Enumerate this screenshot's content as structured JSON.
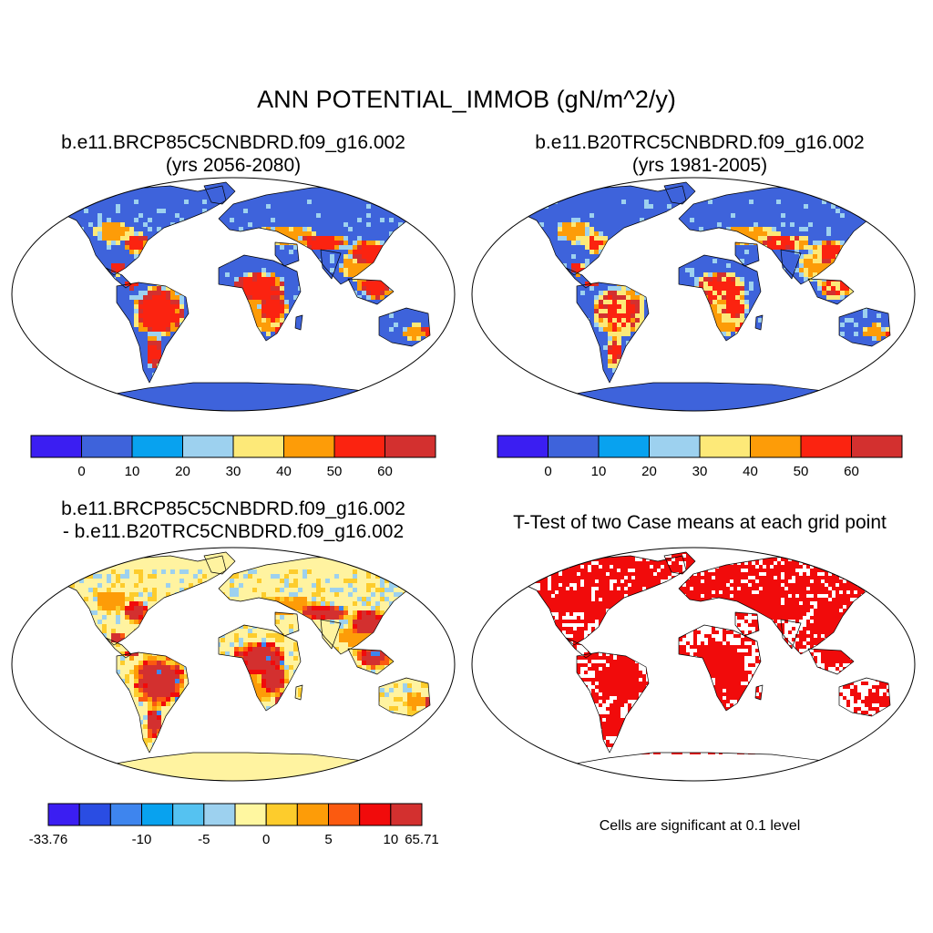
{
  "title": "ANN POTENTIAL_IMMOB (gN/m^2/y)",
  "panels": [
    {
      "line1": "b.e11.BRCP85C5CNBDRD.f09_g16.002",
      "line2": "(yrs 2056-2080)",
      "kind": "field"
    },
    {
      "line1": "b.e11.B20TRC5CNBDRD.f09_g16.002",
      "line2": "(yrs 1981-2005)",
      "kind": "field"
    },
    {
      "line1": "b.e11.BRCP85C5CNBDRD.f09_g16.002",
      "line2": "- b.e11.B20TRC5CNBDRD.f09_g16.002",
      "kind": "diff"
    },
    {
      "line1": "T-Test of two Case means at each grid point",
      "kind": "ttest",
      "note": "Cells are significant at 0.1 level"
    }
  ],
  "colorbar_main": {
    "colors": [
      "#3b1ef2",
      "#3e63db",
      "#08a2ef",
      "#9dd1ef",
      "#fde978",
      "#fd9c08",
      "#fb2310",
      "#d3302f"
    ],
    "labels": [
      "0",
      "10",
      "20",
      "30",
      "40",
      "50",
      "60"
    ]
  },
  "colorbar_diff": {
    "colors": [
      "#3b1ef2",
      "#2a4de3",
      "#3e85ee",
      "#08a2ef",
      "#55c2f1",
      "#9dd1ef",
      "#fff7a0",
      "#fdcc2c",
      "#fd9c08",
      "#fb5a10",
      "#f10b0b",
      "#d3302f"
    ],
    "labels": [
      "-33.76",
      "-10",
      "-5",
      "0",
      "5",
      "10",
      "65.71"
    ]
  },
  "colors": {
    "land_low": "#3e63db",
    "ttest_significant": "#f10b0b",
    "diff_base": "#fff3a0"
  }
}
